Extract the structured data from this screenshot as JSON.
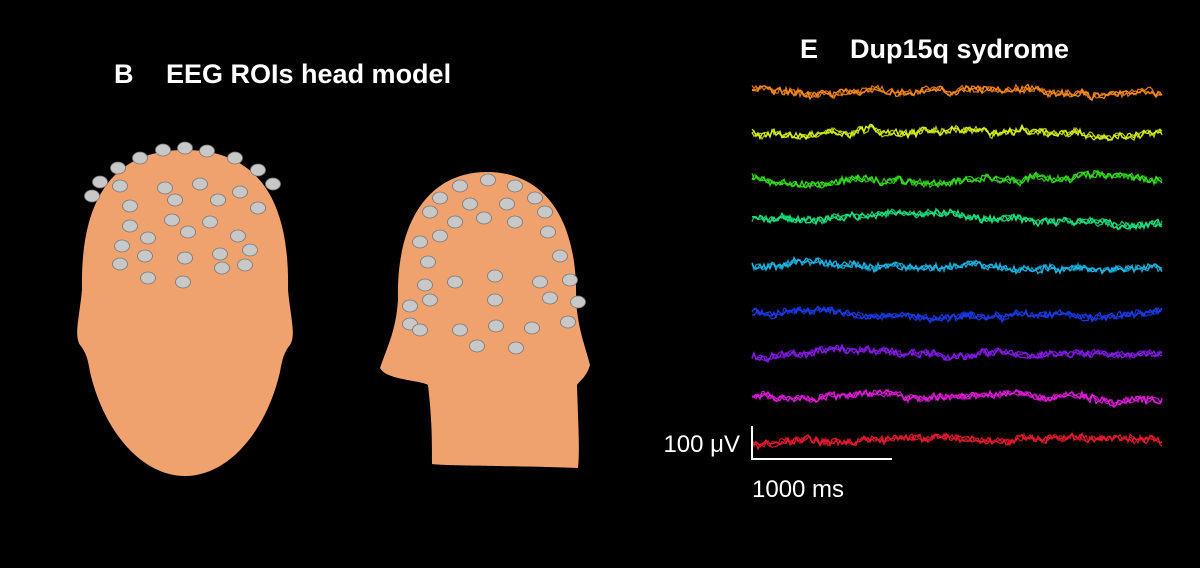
{
  "panel_b": {
    "label": "B",
    "title": "EEG ROIs head model"
  },
  "panel_e": {
    "label": "E",
    "title": "Dup15q sydrome",
    "scale_amplitude": "100 μV",
    "scale_time": "1000 ms"
  }
}
